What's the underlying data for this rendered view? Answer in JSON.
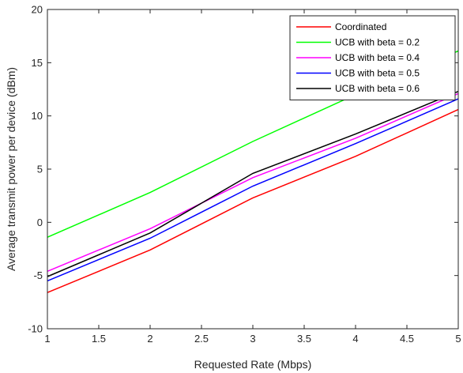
{
  "chart_data": {
    "type": "line",
    "title": "",
    "xlabel": "Requested Rate (Mbps)",
    "ylabel": "Average transmit power per device (dBm)",
    "xlim": [
      1,
      5
    ],
    "ylim": [
      -10,
      20
    ],
    "xticks": [
      "1",
      "1.5",
      "2",
      "2.5",
      "3",
      "3.5",
      "4",
      "4.5",
      "5"
    ],
    "yticks": [
      "-10",
      "-5",
      "0",
      "5",
      "10",
      "15",
      "20"
    ],
    "grid": false,
    "legend_position": "top-right",
    "x": [
      1,
      2,
      3,
      4,
      5
    ],
    "series": [
      {
        "name": "Coordinated",
        "color": "#ff0000",
        "values": [
          -6.6,
          -2.6,
          2.3,
          6.2,
          10.6
        ]
      },
      {
        "name": "UCB with beta = 0.2",
        "color": "#00ff00",
        "values": [
          -1.4,
          2.8,
          7.6,
          12.0,
          16.1
        ]
      },
      {
        "name": "UCB with beta = 0.4",
        "color": "#ff00ff",
        "values": [
          -4.6,
          -0.6,
          4.2,
          7.9,
          12.1
        ]
      },
      {
        "name": "UCB with beta = 0.5",
        "color": "#0000ff",
        "values": [
          -5.5,
          -1.5,
          3.4,
          7.4,
          11.6
        ]
      },
      {
        "name": "UCB with beta = 0.6",
        "color": "#000000",
        "values": [
          -5.1,
          -1.0,
          4.6,
          8.3,
          12.3
        ]
      }
    ]
  }
}
